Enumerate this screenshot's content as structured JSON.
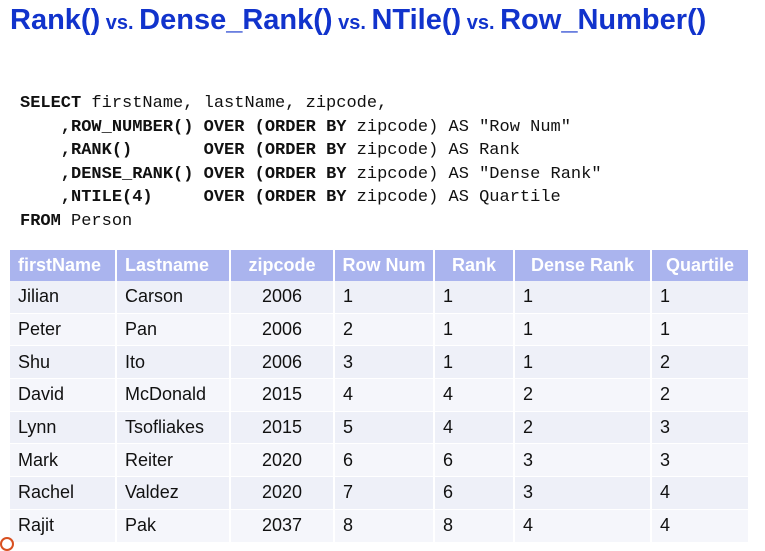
{
  "title": {
    "parts": [
      {
        "text": "Rank()",
        "size": "big"
      },
      {
        "text": " vs. ",
        "size": "vs"
      },
      {
        "text": "Dense_Rank()",
        "size": "big"
      },
      {
        "text": " vs. ",
        "size": "vs"
      },
      {
        "text": "NTile()",
        "size": "big"
      },
      {
        "text": " vs. ",
        "size": "vs"
      },
      {
        "text": "Row_Number()",
        "size": "big"
      }
    ]
  },
  "sql": {
    "lines": [
      [
        {
          "t": "SELECT",
          "k": true
        },
        {
          "t": " firstName, lastName, zipcode,"
        }
      ],
      [
        {
          "t": "    ,ROW_NUMBER()",
          "k": true
        },
        {
          "t": " "
        },
        {
          "t": "OVER",
          "k": true
        },
        {
          "t": " "
        },
        {
          "t": "(ORDER BY",
          "k": true
        },
        {
          "t": " zipcode) AS \"Row Num\""
        }
      ],
      [
        {
          "t": "    ,RANK()",
          "k": true
        },
        {
          "t": "       "
        },
        {
          "t": "OVER",
          "k": true
        },
        {
          "t": " "
        },
        {
          "t": "(ORDER BY",
          "k": true
        },
        {
          "t": " zipcode) AS Rank"
        }
      ],
      [
        {
          "t": "    ,DENSE_RANK()",
          "k": true
        },
        {
          "t": " "
        },
        {
          "t": "OVER",
          "k": true
        },
        {
          "t": " "
        },
        {
          "t": "(ORDER BY",
          "k": true
        },
        {
          "t": " zipcode) AS \"Dense Rank\""
        }
      ],
      [
        {
          "t": "    ,NTILE(4)",
          "k": true
        },
        {
          "t": "     "
        },
        {
          "t": "OVER",
          "k": true
        },
        {
          "t": " "
        },
        {
          "t": "(ORDER BY",
          "k": true
        },
        {
          "t": " zipcode) AS Quartile"
        }
      ],
      [
        {
          "t": "FROM",
          "k": true
        },
        {
          "t": " Person"
        }
      ]
    ]
  },
  "table": {
    "headers": [
      "firstName",
      "Lastname",
      "zipcode",
      "Row Num",
      "Rank",
      "Dense Rank",
      "Quartile"
    ],
    "rows": [
      [
        "Jilian",
        "Carson",
        "2006",
        "1",
        "1",
        "1",
        "1"
      ],
      [
        "Peter",
        "Pan",
        "2006",
        "2",
        "1",
        "1",
        "1"
      ],
      [
        "Shu",
        "Ito",
        "2006",
        "3",
        "1",
        "1",
        "2"
      ],
      [
        "David",
        "McDonald",
        "2015",
        "4",
        "4",
        "2",
        "2"
      ],
      [
        "Lynn",
        "Tsofliakes",
        "2015",
        "5",
        "4",
        "2",
        "3"
      ],
      [
        "Mark",
        "Reiter",
        "2020",
        "6",
        "6",
        "3",
        "3"
      ],
      [
        "Rachel",
        "Valdez",
        "2020",
        "7",
        "6",
        "3",
        "4"
      ],
      [
        "Rajit",
        "Pak",
        "2037",
        "8",
        "8",
        "4",
        "4"
      ]
    ]
  }
}
